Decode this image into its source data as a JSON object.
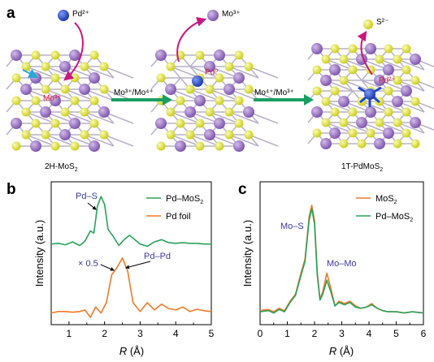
{
  "panel_a": {
    "label": "a",
    "ions": {
      "pd2_in": "Pd²⁺",
      "mo3_out": "Mo³⁺",
      "s2_out": "S²⁻"
    },
    "site_labels": {
      "mo3": "Mo³⁺",
      "pd0": "Pd⁰",
      "pd2": "Pd²⁺"
    },
    "arrow1_label": "Mo³⁺/Mo⁴⁺",
    "arrow2_label": "Mo⁴⁺/Mo³⁺",
    "caption_left": "2H-MoS",
    "caption_left_sub": "2",
    "caption_right": "1T-PdMoS",
    "caption_right_sub": "2",
    "colors": {
      "mo": "#8b63b8",
      "s": "#e4e62a",
      "pd": "#1f47c7",
      "arrow": "#1a9e63",
      "magenta": "#c8177d"
    }
  },
  "chart_data": [
    {
      "panel": "b",
      "type": "line",
      "ylabel": "Intensity (a.u.)",
      "xlabel_italic": "R",
      "xlabel_unit": " (Å)",
      "xlim": [
        0.5,
        5
      ],
      "xticks": [
        "1",
        "2",
        "3",
        "4",
        "5"
      ],
      "y_ticks_shown": false,
      "legend_position": "top-right",
      "series": [
        {
          "name": "Pd–MoS",
          "name_sub": "2",
          "color": "#2aa15a",
          "x": [
            0.5,
            0.7,
            0.9,
            1.1,
            1.3,
            1.45,
            1.6,
            1.7,
            1.8,
            1.9,
            2.0,
            2.1,
            2.25,
            2.4,
            2.55,
            2.7,
            2.85,
            3.0,
            3.2,
            3.4,
            3.6,
            3.8,
            4.0,
            4.2,
            4.4,
            4.6,
            4.8,
            5.0
          ],
          "y": [
            0.3,
            0.31,
            0.29,
            0.33,
            0.28,
            0.34,
            0.48,
            0.45,
            0.82,
            0.95,
            0.84,
            0.5,
            0.4,
            0.28,
            0.36,
            0.42,
            0.36,
            0.3,
            0.27,
            0.33,
            0.36,
            0.32,
            0.31,
            0.32,
            0.31,
            0.31,
            0.3,
            0.3
          ]
        },
        {
          "name": "Pd foil",
          "color": "#f07a2a",
          "x": [
            0.5,
            0.7,
            0.9,
            1.1,
            1.3,
            1.45,
            1.6,
            1.75,
            1.9,
            2.05,
            2.2,
            2.35,
            2.5,
            2.65,
            2.8,
            3.0,
            3.2,
            3.4,
            3.6,
            3.8,
            4.0,
            4.2,
            4.4,
            4.6,
            4.8,
            5.0
          ],
          "y": [
            -0.64,
            -0.62,
            -0.62,
            -0.63,
            -0.62,
            -0.6,
            -0.7,
            -0.56,
            -0.64,
            -0.5,
            -0.12,
            -0.02,
            0.11,
            -0.07,
            -0.5,
            -0.62,
            -0.5,
            -0.6,
            -0.52,
            -0.58,
            -0.6,
            -0.56,
            -0.62,
            -0.59,
            -0.61,
            -0.62
          ]
        }
      ],
      "annotations": {
        "peak1": "Pd–S",
        "peak2": "Pd–Pd",
        "scale": "× 0.5"
      }
    },
    {
      "panel": "c",
      "type": "line",
      "ylabel": "Intensity (a.u.)",
      "xlabel_italic": "R",
      "xlabel_unit": " (Å)",
      "xlim": [
        0,
        6
      ],
      "xticks": [
        "0",
        "1",
        "2",
        "3",
        "4",
        "5",
        "6"
      ],
      "y_ticks_shown": false,
      "legend_position": "top-right",
      "series": [
        {
          "name": "MoS",
          "name_sub": "2",
          "color": "#f07a2a",
          "x": [
            0.0,
            0.3,
            0.5,
            0.7,
            0.9,
            1.1,
            1.3,
            1.5,
            1.65,
            1.8,
            1.9,
            2.0,
            2.1,
            2.2,
            2.3,
            2.45,
            2.6,
            2.75,
            2.9,
            3.1,
            3.3,
            3.5,
            3.7,
            3.9,
            4.1,
            4.3,
            4.5,
            4.7,
            5.0,
            5.3,
            5.6,
            6.0
          ],
          "y": [
            0.08,
            0.09,
            0.07,
            0.1,
            0.08,
            0.16,
            0.22,
            0.4,
            0.52,
            0.88,
            0.98,
            0.85,
            0.4,
            0.18,
            0.24,
            0.4,
            0.27,
            0.12,
            0.16,
            0.14,
            0.16,
            0.12,
            0.1,
            0.11,
            0.14,
            0.1,
            0.08,
            0.07,
            0.07,
            0.06,
            0.07,
            0.06
          ]
        },
        {
          "name": "Pd–MoS",
          "name_sub": "2",
          "color": "#2aa15a",
          "x": [
            0.0,
            0.3,
            0.5,
            0.7,
            0.9,
            1.1,
            1.3,
            1.5,
            1.65,
            1.8,
            1.9,
            2.0,
            2.1,
            2.2,
            2.3,
            2.45,
            2.6,
            2.75,
            2.9,
            3.1,
            3.3,
            3.5,
            3.7,
            3.9,
            4.1,
            4.3,
            4.5,
            4.7,
            5.0,
            5.3,
            5.6,
            6.0
          ],
          "y": [
            0.07,
            0.08,
            0.06,
            0.09,
            0.07,
            0.15,
            0.21,
            0.38,
            0.5,
            0.85,
            0.95,
            0.82,
            0.38,
            0.17,
            0.22,
            0.34,
            0.24,
            0.12,
            0.15,
            0.13,
            0.15,
            0.11,
            0.1,
            0.11,
            0.13,
            0.1,
            0.08,
            0.07,
            0.07,
            0.06,
            0.07,
            0.06
          ]
        }
      ],
      "annotations": {
        "peak1": "Mo–S",
        "peak2": "Mo–Mo"
      }
    }
  ]
}
